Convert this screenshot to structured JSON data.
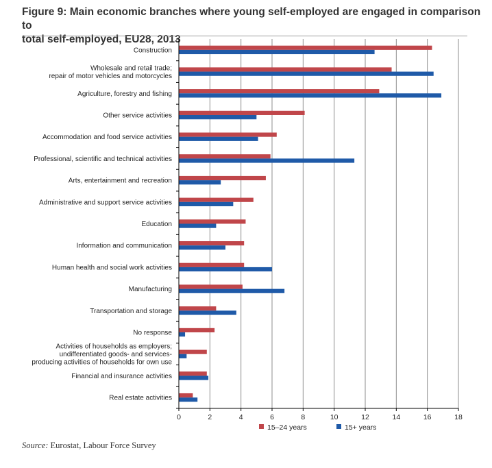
{
  "title": {
    "line1": "Figure 9: Main economic branches where young self-employed are engaged in comparison to",
    "line2": "total self-employed, EU28, 2013"
  },
  "source": {
    "label": "Source:",
    "text": " Eurostat, Labour Force Survey"
  },
  "colors": {
    "series_15_24": "#c0464a",
    "series_15_plus": "#1f5aa8",
    "grid": "#8c8c8c",
    "axis": "#000000"
  },
  "chart_data": {
    "type": "bar",
    "orientation": "horizontal",
    "categories": [
      [
        "Construction"
      ],
      [
        "Wholesale and retail trade;",
        "repair of motor vehicles and motorcycles"
      ],
      [
        "Agriculture, forestry and fishing"
      ],
      [
        "Other service activities"
      ],
      [
        "Accommodation and food service activities"
      ],
      [
        "Professional, scientific and technical activities"
      ],
      [
        "Arts, entertainment and recreation"
      ],
      [
        "Administrative and support service activities"
      ],
      [
        "Education"
      ],
      [
        "Information and communication"
      ],
      [
        "Human health and social work activities"
      ],
      [
        "Manufacturing"
      ],
      [
        "Transportation and storage"
      ],
      [
        "No response"
      ],
      [
        "Activities of households as employers;",
        "undifferentiated goods- and services-",
        "producing activities of households for own use"
      ],
      [
        "Financial and insurance activities"
      ],
      [
        "Real estate activities"
      ]
    ],
    "series": [
      {
        "name": "15–24 years",
        "color": "#c0464a",
        "values": [
          16.3,
          13.7,
          12.9,
          8.1,
          6.3,
          5.9,
          5.6,
          4.8,
          4.3,
          4.2,
          4.2,
          4.1,
          2.4,
          2.3,
          1.8,
          1.8,
          0.9
        ]
      },
      {
        "name": "15+ years",
        "color": "#1f5aa8",
        "values": [
          12.6,
          16.4,
          16.9,
          5.0,
          5.1,
          11.3,
          2.7,
          3.5,
          2.4,
          3.0,
          6.0,
          6.8,
          3.7,
          0.4,
          0.5,
          1.9,
          1.2
        ]
      }
    ],
    "xlim": [
      0,
      18
    ],
    "xticks": [
      0,
      2,
      4,
      6,
      8,
      10,
      12,
      14,
      16,
      18
    ],
    "xlabel": "",
    "ylabel": "",
    "grid": "vertical",
    "legend": "bottom"
  }
}
